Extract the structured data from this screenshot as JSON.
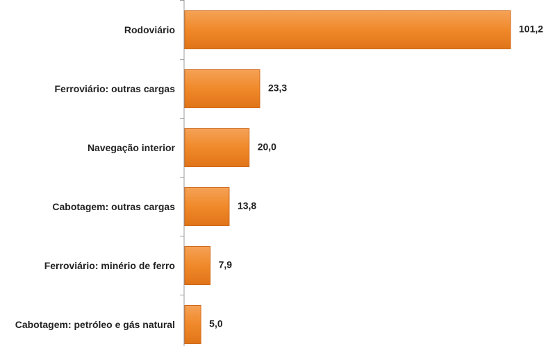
{
  "chart_data": {
    "type": "bar",
    "orientation": "horizontal",
    "categories": [
      "Rodoviário",
      "Ferroviário: outras cargas",
      "Navegação interior",
      "Cabotagem: outras cargas",
      "Ferroviário: minério de ferro",
      "Cabotagem: petróleo e gás natural"
    ],
    "values": [
      101.2,
      23.3,
      20.0,
      13.8,
      7.9,
      5.0
    ],
    "value_labels": [
      "101,2",
      "23,3",
      "20,0",
      "13,8",
      "7,9",
      "5,0"
    ],
    "color": "#f0892a"
  }
}
